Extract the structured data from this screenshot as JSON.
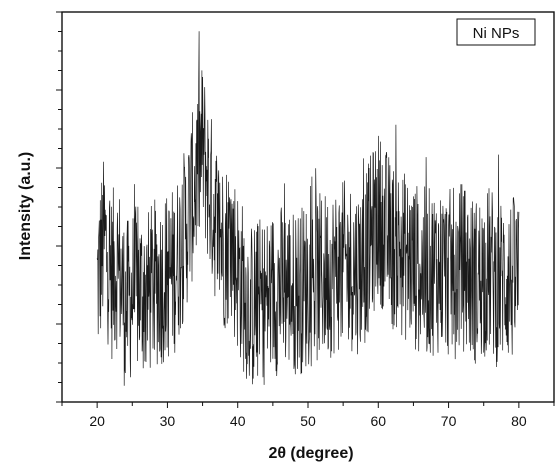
{
  "chart_data": {
    "type": "line",
    "title": "",
    "xlabel": "2θ (degree)",
    "ylabel": "Intensity (a.u.)",
    "xlim": [
      15,
      85
    ],
    "ylim": [
      0,
      10
    ],
    "x_ticks": [
      20,
      30,
      40,
      50,
      60,
      70,
      80
    ],
    "x_tick_labels": [
      "20",
      "30",
      "40",
      "50",
      "60",
      "70",
      "80"
    ],
    "y_tick_labels_shown": false,
    "grid": false,
    "legend": {
      "position": "top-right",
      "entries": [
        "Ni NPs"
      ]
    },
    "series": [
      {
        "name": "Ni NPs",
        "color": "#1a1a1a",
        "x": [
          20,
          21,
          22,
          23,
          24,
          25,
          26,
          27,
          28,
          29,
          30,
          31,
          32,
          33,
          34,
          35,
          36,
          37,
          38,
          39,
          40,
          41,
          42,
          43,
          44,
          45,
          46,
          47,
          48,
          49,
          50,
          51,
          52,
          53,
          54,
          55,
          56,
          57,
          58,
          59,
          60,
          61,
          62,
          63,
          64,
          65,
          66,
          67,
          68,
          69,
          70,
          71,
          72,
          73,
          74,
          75,
          76,
          77,
          78,
          79,
          80
        ],
        "y": [
          3.0,
          4.2,
          3.2,
          3.6,
          2.4,
          2.8,
          2.9,
          2.7,
          3.0,
          3.1,
          3.2,
          3.4,
          4.0,
          4.8,
          5.6,
          6.6,
          5.4,
          4.6,
          4.0,
          4.2,
          3.4,
          2.8,
          2.4,
          2.6,
          2.6,
          2.8,
          2.9,
          3.0,
          2.8,
          2.9,
          3.0,
          3.1,
          3.2,
          3.3,
          3.4,
          3.5,
          3.5,
          3.4,
          3.6,
          4.2,
          4.8,
          4.4,
          4.0,
          3.9,
          3.7,
          3.5,
          3.4,
          3.3,
          3.4,
          3.4,
          3.3,
          3.3,
          3.5,
          3.2,
          3.1,
          3.3,
          3.4,
          3.0,
          3.2,
          3.1,
          3.2
        ],
        "noise_amplitude": 2.2
      }
    ]
  }
}
